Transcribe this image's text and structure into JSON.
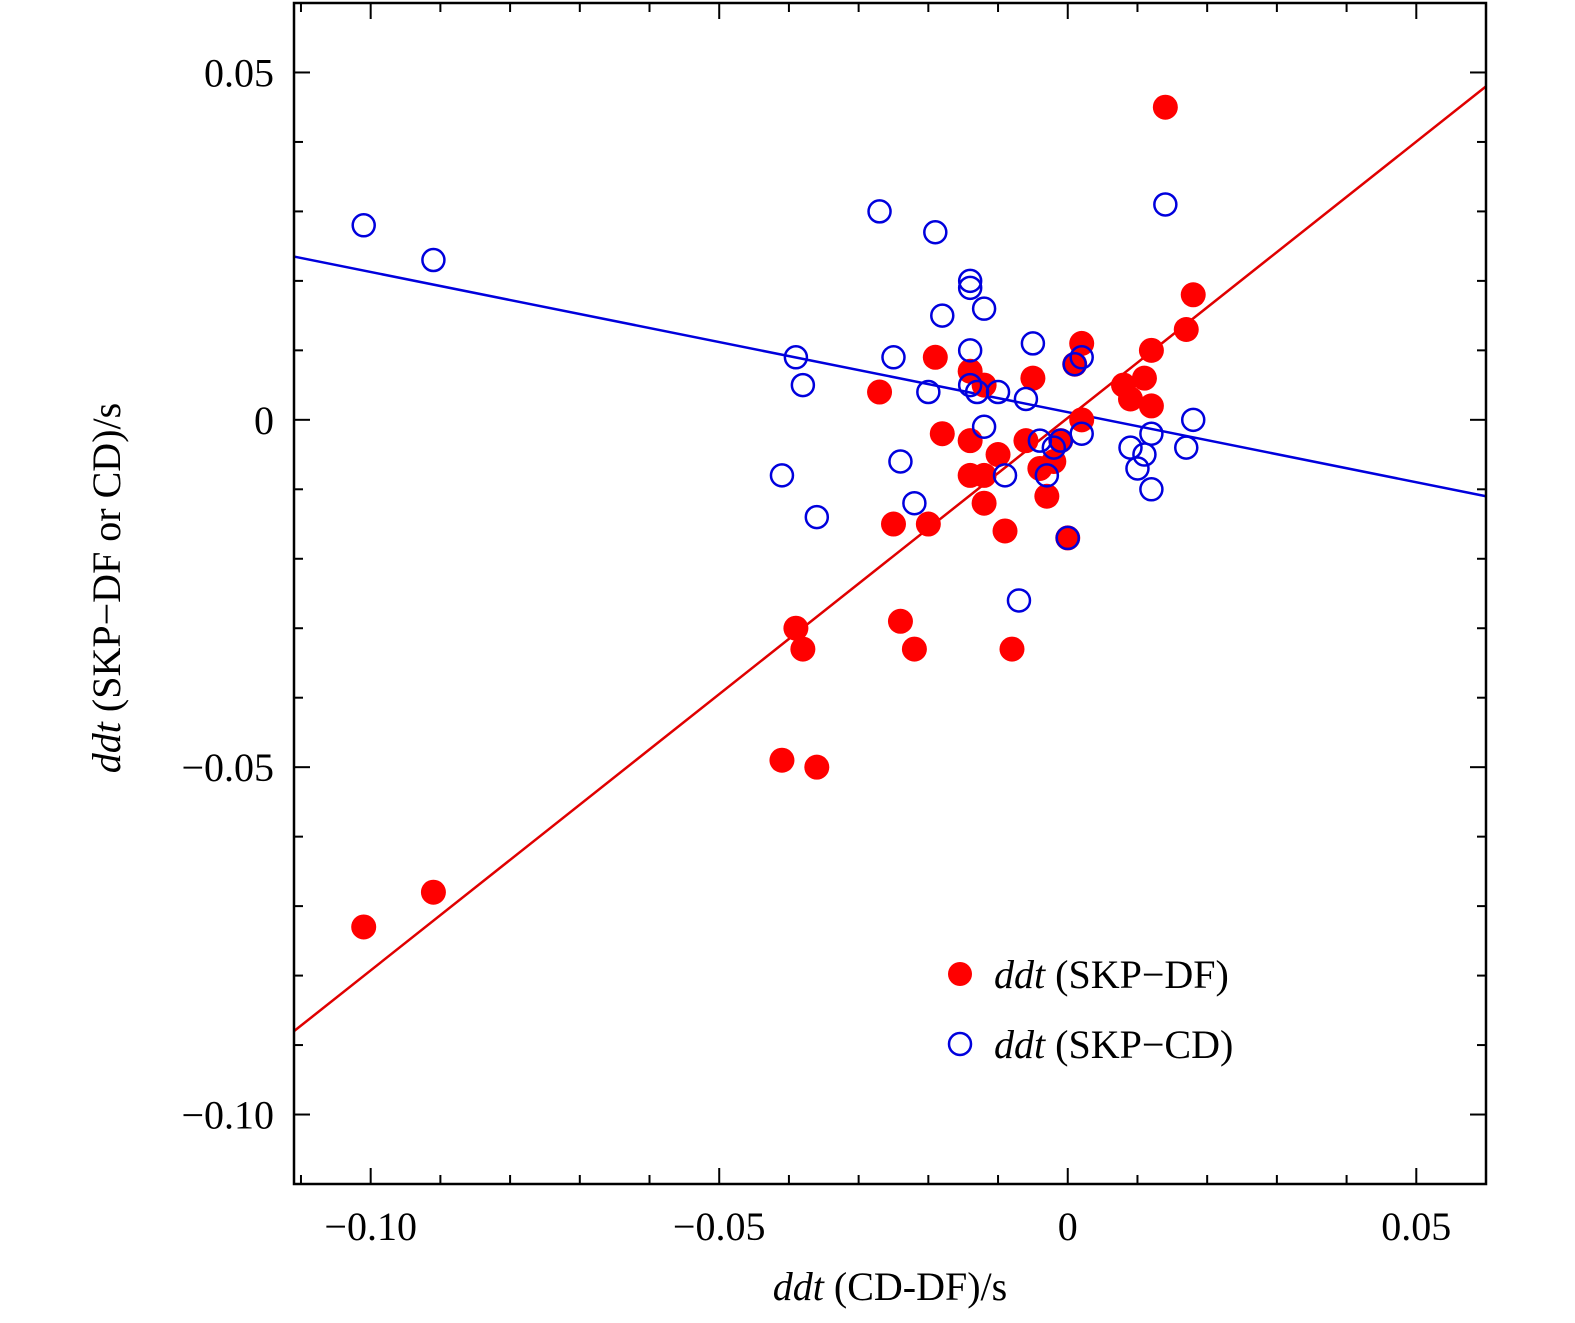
{
  "chart_data": {
    "type": "scatter",
    "xlabel": {
      "italic": "ddt",
      "rest": " (CD-DF)/s"
    },
    "ylabel": {
      "italic": "ddt",
      "rest": " (SKP−DF or CD)/s"
    },
    "xlim": [
      -0.111,
      0.06
    ],
    "ylim": [
      -0.11,
      0.06
    ],
    "xticks": [
      {
        "value": -0.1,
        "label": "−0.10"
      },
      {
        "value": -0.05,
        "label": "−0.05"
      },
      {
        "value": 0,
        "label": "0"
      },
      {
        "value": 0.05,
        "label": "0.05"
      }
    ],
    "yticks": [
      {
        "value": 0.05,
        "label": "0.05"
      },
      {
        "value": 0,
        "label": "0"
      },
      {
        "value": -0.05,
        "label": "−0.05"
      },
      {
        "value": -0.1,
        "label": "−0.10"
      }
    ],
    "minor_step": 0.01,
    "grid": false,
    "legend_position": "bottom-right",
    "series": [
      {
        "name": "ddt (SKP−DF)",
        "legend": {
          "italic": "ddt",
          "rest": " (SKP−DF)"
        },
        "marker": "filled-circle",
        "color": "#ff0000",
        "fit_line": {
          "color": "#e00000",
          "p1": [
            -0.111,
            -0.088
          ],
          "p2": [
            0.06,
            0.048
          ]
        },
        "points": [
          [
            -0.101,
            -0.073
          ],
          [
            -0.091,
            -0.068
          ],
          [
            -0.041,
            -0.049
          ],
          [
            -0.036,
            -0.05
          ],
          [
            -0.039,
            -0.03
          ],
          [
            -0.038,
            -0.033
          ],
          [
            -0.024,
            -0.029
          ],
          [
            -0.022,
            -0.033
          ],
          [
            -0.008,
            -0.033
          ],
          [
            -0.025,
            -0.015
          ],
          [
            -0.02,
            -0.015
          ],
          [
            -0.009,
            -0.016
          ],
          [
            -0.027,
            0.004
          ],
          [
            -0.019,
            0.009
          ],
          [
            -0.018,
            -0.002
          ],
          [
            -0.014,
            0.007
          ],
          [
            -0.012,
            0.005
          ],
          [
            -0.014,
            -0.003
          ],
          [
            -0.014,
            -0.008
          ],
          [
            -0.012,
            -0.008
          ],
          [
            -0.012,
            -0.012
          ],
          [
            -0.01,
            -0.005
          ],
          [
            -0.006,
            -0.003
          ],
          [
            -0.005,
            0.006
          ],
          [
            -0.004,
            -0.007
          ],
          [
            -0.003,
            -0.011
          ],
          [
            -0.002,
            -0.006
          ],
          [
            -0.001,
            -0.003
          ],
          [
            0.0,
            -0.017
          ],
          [
            0.001,
            0.008
          ],
          [
            0.002,
            0.011
          ],
          [
            0.002,
            0.0
          ],
          [
            0.008,
            0.005
          ],
          [
            0.009,
            0.003
          ],
          [
            0.011,
            0.006
          ],
          [
            0.012,
            0.002
          ],
          [
            0.012,
            0.01
          ],
          [
            0.014,
            0.045
          ],
          [
            0.017,
            0.013
          ],
          [
            0.018,
            0.018
          ]
        ]
      },
      {
        "name": "ddt (SKP−CD)",
        "legend": {
          "italic": "ddt",
          "rest": " (SKP−CD)"
        },
        "marker": "open-circle",
        "color": "#0000dd",
        "fit_line": {
          "color": "#0000dd",
          "p1": [
            -0.111,
            0.0235
          ],
          "p2": [
            0.06,
            -0.011
          ]
        },
        "points": [
          [
            -0.101,
            0.028
          ],
          [
            -0.091,
            0.023
          ],
          [
            -0.041,
            -0.008
          ],
          [
            -0.039,
            0.009
          ],
          [
            -0.038,
            0.005
          ],
          [
            -0.036,
            -0.014
          ],
          [
            -0.027,
            0.03
          ],
          [
            -0.025,
            0.009
          ],
          [
            -0.024,
            -0.006
          ],
          [
            -0.022,
            -0.012
          ],
          [
            -0.02,
            0.004
          ],
          [
            -0.019,
            0.027
          ],
          [
            -0.018,
            0.015
          ],
          [
            -0.014,
            0.02
          ],
          [
            -0.014,
            0.019
          ],
          [
            -0.012,
            0.016
          ],
          [
            -0.014,
            0.01
          ],
          [
            -0.014,
            0.005
          ],
          [
            -0.013,
            0.004
          ],
          [
            -0.012,
            -0.001
          ],
          [
            -0.01,
            0.004
          ],
          [
            -0.009,
            -0.008
          ],
          [
            -0.007,
            -0.026
          ],
          [
            -0.006,
            0.003
          ],
          [
            -0.005,
            0.011
          ],
          [
            -0.004,
            -0.003
          ],
          [
            -0.003,
            -0.008
          ],
          [
            -0.002,
            -0.004
          ],
          [
            -0.001,
            -0.003
          ],
          [
            0.0,
            -0.017
          ],
          [
            0.001,
            0.008
          ],
          [
            0.002,
            0.009
          ],
          [
            0.002,
            -0.002
          ],
          [
            0.009,
            -0.004
          ],
          [
            0.01,
            -0.007
          ],
          [
            0.011,
            -0.005
          ],
          [
            0.012,
            -0.002
          ],
          [
            0.012,
            -0.01
          ],
          [
            0.014,
            0.031
          ],
          [
            0.017,
            -0.004
          ],
          [
            0.018,
            0.0
          ]
        ]
      }
    ]
  }
}
